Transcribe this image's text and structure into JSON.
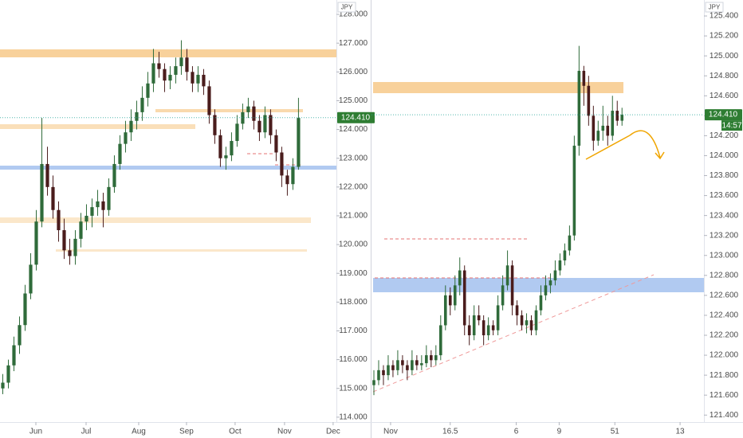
{
  "chart_data": [
    {
      "type": "candlestick",
      "currency": "JPY",
      "up_color": "#2f6b3a",
      "down_color": "#4a1c1c",
      "xlim": [
        0,
        60.3
      ],
      "ylim": [
        113.83,
        128.5
      ],
      "xticks": [
        {
          "value": 6.43,
          "label": "Jun"
        },
        {
          "value": 15.43,
          "label": "Jul"
        },
        {
          "value": 24.86,
          "label": "Aug"
        },
        {
          "value": 33.43,
          "label": "Sep"
        },
        {
          "value": 42.14,
          "label": "Oct"
        },
        {
          "value": 51,
          "label": "Nov"
        },
        {
          "value": 59.71,
          "label": "Dec"
        }
      ],
      "yticks": [
        {
          "value": 128,
          "label": "128.000"
        },
        {
          "value": 127,
          "label": "127.000"
        },
        {
          "value": 126,
          "label": "126.000"
        },
        {
          "value": 125,
          "label": "125.000"
        },
        {
          "value": 124,
          "label": "124.000"
        },
        {
          "value": 123,
          "label": "123.000"
        },
        {
          "value": 122,
          "label": "122.000"
        },
        {
          "value": 121,
          "label": "121.000"
        },
        {
          "value": 120,
          "label": "120.000"
        },
        {
          "value": 119,
          "label": "119.000"
        },
        {
          "value": 118,
          "label": "118.000"
        },
        {
          "value": 117,
          "label": "117.000"
        },
        {
          "value": 116,
          "label": "116.000"
        },
        {
          "value": 115,
          "label": "115.000"
        },
        {
          "value": 114,
          "label": "114.000"
        }
      ],
      "last_price": {
        "value": 124.41,
        "label": "124.410"
      },
      "x": [
        0.5,
        1.5,
        2.5,
        3.5,
        4.5,
        5.5,
        6.5,
        7.5,
        8.5,
        9.5,
        10.5,
        11.5,
        12.5,
        13.5,
        14.5,
        15.5,
        16.5,
        17.5,
        18.5,
        19.5,
        20.5,
        21.5,
        22.5,
        23.5,
        24.5,
        25.5,
        26.5,
        27.5,
        28.5,
        29.5,
        30.5,
        31.5,
        32.5,
        33.5,
        34.5,
        35.5,
        36.5,
        37.5,
        38.5,
        39.5,
        40.5,
        41.5,
        42.5,
        43.5,
        44.5,
        45.5,
        46.5,
        47.5,
        48.5,
        49.5,
        50.5,
        51.5,
        52.5,
        53.5
      ],
      "open": [
        115.0,
        115.2,
        115.8,
        116.5,
        117.2,
        118.3,
        119.3,
        120.8,
        122.8,
        122.0,
        121.2,
        120.5,
        119.8,
        119.6,
        120.2,
        120.8,
        121.0,
        121.3,
        121.5,
        121.2,
        122.0,
        122.8,
        123.5,
        123.9,
        124.3,
        124.6,
        125.1,
        125.6,
        126.3,
        126.1,
        125.7,
        125.9,
        126.2,
        126.5,
        126.0,
        125.6,
        125.9,
        125.5,
        124.5,
        123.8,
        123.0,
        123.1,
        123.6,
        124.2,
        124.6,
        124.8,
        124.3,
        123.9,
        124.5,
        123.8,
        123.2,
        122.4,
        122.1,
        122.7
      ],
      "high": [
        115.5,
        116.0,
        116.8,
        117.5,
        118.6,
        119.7,
        121.2,
        124.4,
        123.4,
        122.4,
        121.5,
        120.9,
        120.2,
        120.5,
        121.1,
        121.4,
        121.6,
        121.9,
        121.8,
        122.3,
        123.1,
        123.8,
        124.3,
        124.7,
        125.0,
        125.5,
        126.0,
        126.8,
        126.7,
        126.3,
        126.2,
        126.5,
        127.1,
        126.8,
        126.2,
        126.2,
        126.1,
        125.7,
        124.7,
        124.0,
        123.4,
        123.9,
        124.5,
        124.9,
        125.1,
        125.0,
        124.5,
        124.8,
        124.7,
        124.0,
        123.4,
        122.6,
        123.0,
        125.1
      ],
      "low": [
        114.8,
        115.0,
        115.6,
        116.2,
        117.0,
        118.1,
        119.1,
        120.6,
        121.7,
        120.9,
        120.1,
        119.5,
        119.3,
        119.3,
        119.9,
        120.5,
        120.6,
        121.0,
        120.6,
        121.0,
        121.8,
        122.6,
        123.2,
        123.6,
        124.0,
        124.3,
        124.8,
        125.3,
        125.8,
        125.3,
        125.4,
        125.6,
        125.9,
        125.7,
        125.3,
        125.3,
        125.2,
        124.2,
        123.5,
        122.7,
        122.6,
        122.9,
        123.4,
        124.0,
        124.4,
        124.0,
        123.6,
        123.7,
        123.5,
        122.9,
        122.0,
        121.7,
        121.9,
        122.6
      ],
      "close": [
        115.2,
        115.8,
        116.5,
        117.2,
        118.3,
        119.3,
        120.8,
        122.8,
        122.0,
        121.2,
        120.5,
        119.8,
        119.6,
        120.2,
        120.8,
        121.0,
        121.3,
        121.5,
        121.2,
        122.0,
        122.8,
        123.5,
        123.9,
        124.3,
        124.6,
        125.1,
        125.6,
        126.3,
        126.1,
        125.7,
        125.9,
        126.2,
        126.5,
        126.0,
        125.6,
        125.9,
        125.5,
        124.5,
        123.8,
        123.0,
        123.1,
        123.6,
        124.2,
        124.6,
        124.8,
        124.3,
        123.9,
        124.5,
        123.8,
        123.2,
        122.4,
        122.1,
        122.7,
        124.4
      ]
    },
    {
      "type": "candlestick",
      "currency": "JPY",
      "up_color": "#2f6b3a",
      "down_color": "#4a1c1c",
      "xlim": [
        0,
        69.67
      ],
      "ylim": [
        121.33,
        125.56
      ],
      "xticks": [
        {
          "value": 4,
          "label": "Nov"
        },
        16.5,
        {
          "value": 30.33,
          "label": "6"
        },
        {
          "value": 39.33,
          "label": "9"
        },
        51,
        {
          "value": 64.67,
          "label": "13"
        }
      ],
      "yticks": [
        {
          "value": 125.4,
          "label": "125.400"
        },
        {
          "value": 125.2,
          "label": "125.200"
        },
        {
          "value": 125,
          "label": "125.000"
        },
        {
          "value": 124.8,
          "label": "124.800"
        },
        {
          "value": 124.6,
          "label": "124.600"
        },
        {
          "value": 124.4,
          "label": "124.400"
        },
        {
          "value": 124.2,
          "label": "124.200"
        },
        {
          "value": 124,
          "label": "124.000"
        },
        {
          "value": 123.8,
          "label": "123.800"
        },
        {
          "value": 123.6,
          "label": "123.600"
        },
        {
          "value": 123.4,
          "label": "123.400"
        },
        {
          "value": 123.2,
          "label": "123.200"
        },
        {
          "value": 123,
          "label": "123.000"
        },
        {
          "value": 122.8,
          "label": "122.800"
        },
        {
          "value": 122.6,
          "label": "122.600"
        },
        {
          "value": 122.4,
          "label": "122.400"
        },
        {
          "value": 122.2,
          "label": "122.200"
        },
        {
          "value": 122,
          "label": "122.000"
        },
        {
          "value": 121.8,
          "label": "121.800"
        },
        {
          "value": 121.6,
          "label": "121.600"
        },
        {
          "value": 121.4,
          "label": "121.400"
        }
      ],
      "last_price": {
        "value": 124.41,
        "label": "124.410"
      },
      "countdown": "14:57",
      "x": [
        0.5,
        1.5,
        2.5,
        3.5,
        4.5,
        5.5,
        6.5,
        7.5,
        8.5,
        9.5,
        10.5,
        11.5,
        12.5,
        13.5,
        14.5,
        15.5,
        16.5,
        17.5,
        18.5,
        19.5,
        20.5,
        21.5,
        22.5,
        23.5,
        24.5,
        25.5,
        26.5,
        27.5,
        28.5,
        29.5,
        30.5,
        31.5,
        32.5,
        33.5,
        34.5,
        35.5,
        36.5,
        37.5,
        38.5,
        39.5,
        40.5,
        41.5,
        42.5,
        43.5,
        44.5,
        45.5,
        46.5,
        47.5,
        48.5,
        49.5,
        50.5,
        51.5,
        52.5
      ],
      "open": [
        121.7,
        121.75,
        121.85,
        121.8,
        121.9,
        121.85,
        121.95,
        121.9,
        121.85,
        121.95,
        121.9,
        121.92,
        122.0,
        121.95,
        122.0,
        122.3,
        122.6,
        122.5,
        122.7,
        122.85,
        122.3,
        122.2,
        122.4,
        122.35,
        122.2,
        122.3,
        122.25,
        122.5,
        122.7,
        122.9,
        122.5,
        122.4,
        122.3,
        122.35,
        122.25,
        122.45,
        122.6,
        122.7,
        122.75,
        122.85,
        122.95,
        123.05,
        123.2,
        124.1,
        124.85,
        124.7,
        124.4,
        124.15,
        124.25,
        124.3,
        124.2,
        124.45,
        124.35
      ],
      "high": [
        121.85,
        121.95,
        121.9,
        122.0,
        121.95,
        122.05,
        122.0,
        121.95,
        122.05,
        122.0,
        122.0,
        122.1,
        122.05,
        122.1,
        122.4,
        122.7,
        122.68,
        122.8,
        122.98,
        122.9,
        122.4,
        122.5,
        122.5,
        122.4,
        122.38,
        122.35,
        122.6,
        122.8,
        123.05,
        122.95,
        122.55,
        122.45,
        122.42,
        122.4,
        122.5,
        122.7,
        122.8,
        122.82,
        122.95,
        123.02,
        123.12,
        123.3,
        124.2,
        125.1,
        124.9,
        124.8,
        124.5,
        124.35,
        124.5,
        124.4,
        124.6,
        124.55,
        124.48
      ],
      "low": [
        121.6,
        121.7,
        121.7,
        121.75,
        121.78,
        121.8,
        121.82,
        121.75,
        121.8,
        121.85,
        121.85,
        121.88,
        121.88,
        121.9,
        121.95,
        122.25,
        122.4,
        122.45,
        122.6,
        122.2,
        122.1,
        122.15,
        122.3,
        122.1,
        122.15,
        122.2,
        122.2,
        122.45,
        122.65,
        122.4,
        122.3,
        122.25,
        122.22,
        122.2,
        122.2,
        122.4,
        122.55,
        122.62,
        122.7,
        122.8,
        122.9,
        123.0,
        123.15,
        124.0,
        124.5,
        124.3,
        124.05,
        124.1,
        124.15,
        124.1,
        124.15,
        124.3,
        124.3
      ],
      "close": [
        121.75,
        121.85,
        121.8,
        121.9,
        121.85,
        121.95,
        121.9,
        121.85,
        121.95,
        121.9,
        121.92,
        122.0,
        121.95,
        122.0,
        122.3,
        122.6,
        122.5,
        122.7,
        122.85,
        122.3,
        122.2,
        122.4,
        122.35,
        122.2,
        122.3,
        122.25,
        122.5,
        122.7,
        122.9,
        122.5,
        122.4,
        122.3,
        122.35,
        122.25,
        122.45,
        122.6,
        122.7,
        122.75,
        122.85,
        122.95,
        123.05,
        123.2,
        124.1,
        124.85,
        124.7,
        124.4,
        124.15,
        124.25,
        124.3,
        124.2,
        124.45,
        124.35,
        124.41
      ]
    }
  ]
}
